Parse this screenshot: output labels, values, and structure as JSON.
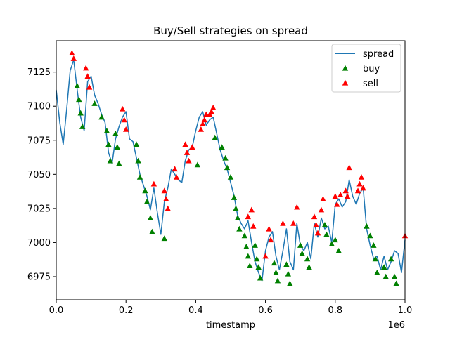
{
  "chart_data": {
    "type": "line",
    "title": "Buy/Sell strategies on spread",
    "xlabel": "timestamp",
    "ylabel": "",
    "x_offset_text": "1e6",
    "xlim": [
      0.0,
      1.0
    ],
    "ylim": [
      6958,
      7148
    ],
    "xticks": [
      0.0,
      0.2,
      0.4,
      0.6,
      0.8,
      1.0
    ],
    "xtick_labels": [
      "0.0",
      "0.2",
      "0.4",
      "0.6",
      "0.8",
      "1.0"
    ],
    "yticks": [
      6975,
      7000,
      7025,
      7050,
      7075,
      7100,
      7125
    ],
    "ytick_labels": [
      "6975",
      "7000",
      "7025",
      "7050",
      "7075",
      "7100",
      "7125"
    ],
    "grid": false,
    "legend_position": "top-right",
    "colors": {
      "spread": "#1f77b4",
      "buy": "#008000",
      "sell": "#ff0000"
    },
    "series": [
      {
        "name": "spread",
        "kind": "line",
        "x": [
          0.0,
          0.01,
          0.02,
          0.03,
          0.04,
          0.05,
          0.06,
          0.07,
          0.08,
          0.09,
          0.1,
          0.11,
          0.12,
          0.13,
          0.14,
          0.15,
          0.16,
          0.17,
          0.18,
          0.19,
          0.2,
          0.21,
          0.22,
          0.23,
          0.24,
          0.25,
          0.26,
          0.27,
          0.28,
          0.29,
          0.3,
          0.31,
          0.32,
          0.33,
          0.34,
          0.35,
          0.36,
          0.37,
          0.38,
          0.39,
          0.4,
          0.41,
          0.42,
          0.43,
          0.44,
          0.45,
          0.46,
          0.47,
          0.48,
          0.49,
          0.5,
          0.51,
          0.52,
          0.53,
          0.54,
          0.55,
          0.56,
          0.57,
          0.58,
          0.59,
          0.6,
          0.61,
          0.62,
          0.63,
          0.64,
          0.65,
          0.66,
          0.67,
          0.68,
          0.69,
          0.7,
          0.71,
          0.72,
          0.73,
          0.74,
          0.75,
          0.76,
          0.77,
          0.78,
          0.79,
          0.8,
          0.81,
          0.82,
          0.83,
          0.84,
          0.85,
          0.86,
          0.87,
          0.88,
          0.89,
          0.9,
          0.91,
          0.92,
          0.93,
          0.94,
          0.95,
          0.96,
          0.97,
          0.98,
          0.99,
          1.0
        ],
        "y": [
          7112,
          7088,
          7072,
          7098,
          7126,
          7134,
          7112,
          7092,
          7082,
          7118,
          7122,
          7108,
          7102,
          7094,
          7088,
          7066,
          7058,
          7076,
          7085,
          7092,
          7096,
          7076,
          7074,
          7062,
          7050,
          7042,
          7034,
          7024,
          7040,
          7022,
          7006,
          7030,
          7040,
          7054,
          7050,
          7046,
          7044,
          7060,
          7068,
          7070,
          7082,
          7092,
          7096,
          7086,
          7090,
          7092,
          7080,
          7068,
          7060,
          7054,
          7044,
          7034,
          7020,
          7014,
          7010,
          7016,
          7000,
          6986,
          6978,
          6972,
          6994,
          7004,
          7008,
          6990,
          6980,
          6994,
          7010,
          6986,
          6980,
          7014,
          6998,
          6994,
          7000,
          6988,
          7014,
          7004,
          7018,
          7010,
          7012,
          7000,
          7028,
          7032,
          7026,
          7030,
          7046,
          7034,
          7028,
          7036,
          7040,
          7010,
          6998,
          6988,
          6990,
          6980,
          6990,
          6980,
          6986,
          6994,
          6992,
          6978,
          7002
        ]
      },
      {
        "name": "buy",
        "kind": "marker",
        "x": [
          0.06,
          0.065,
          0.07,
          0.075,
          0.11,
          0.13,
          0.145,
          0.15,
          0.155,
          0.17,
          0.175,
          0.18,
          0.23,
          0.235,
          0.24,
          0.255,
          0.26,
          0.27,
          0.275,
          0.31,
          0.405,
          0.455,
          0.475,
          0.485,
          0.49,
          0.5,
          0.51,
          0.515,
          0.52,
          0.525,
          0.54,
          0.545,
          0.55,
          0.555,
          0.57,
          0.575,
          0.58,
          0.585,
          0.625,
          0.63,
          0.635,
          0.66,
          0.665,
          0.67,
          0.7,
          0.705,
          0.72,
          0.725,
          0.77,
          0.775,
          0.79,
          0.8,
          0.81,
          0.89,
          0.9,
          0.91,
          0.915,
          0.92,
          0.94,
          0.945,
          0.96,
          0.97,
          0.975
        ],
        "y": [
          7115,
          7105,
          7095,
          7085,
          7102,
          7092,
          7082,
          7072,
          7060,
          7080,
          7070,
          7058,
          7072,
          7060,
          7048,
          7038,
          7030,
          7018,
          7008,
          7003,
          7057,
          7077,
          7070,
          7062,
          7055,
          7048,
          7033,
          7025,
          7018,
          7010,
          7005,
          6997,
          6990,
          6983,
          6998,
          6988,
          6982,
          6974,
          6985,
          6978,
          6972,
          6984,
          6977,
          6970,
          6998,
          6992,
          6988,
          6982,
          7013,
          7006,
          6999,
          7002,
          6994,
          7012,
          7005,
          6998,
          6988,
          6978,
          6982,
          6975,
          6988,
          6975,
          6970
        ]
      },
      {
        "name": "sell",
        "kind": "marker",
        "x": [
          0.045,
          0.05,
          0.085,
          0.09,
          0.095,
          0.19,
          0.195,
          0.2,
          0.28,
          0.31,
          0.315,
          0.32,
          0.34,
          0.345,
          0.37,
          0.375,
          0.38,
          0.39,
          0.415,
          0.42,
          0.425,
          0.43,
          0.44,
          0.445,
          0.45,
          0.55,
          0.56,
          0.565,
          0.6,
          0.61,
          0.615,
          0.65,
          0.68,
          0.69,
          0.74,
          0.745,
          0.75,
          0.76,
          0.765,
          0.8,
          0.805,
          0.815,
          0.83,
          0.835,
          0.84,
          0.865,
          0.87,
          0.875,
          0.88,
          1.0
        ],
        "y": [
          7139,
          7135,
          7128,
          7122,
          7114,
          7098,
          7090,
          7083,
          7043,
          7038,
          7032,
          7025,
          7054,
          7048,
          7072,
          7066,
          7060,
          7070,
          7083,
          7087,
          7090,
          7094,
          7094,
          7096,
          7099,
          7019,
          7024,
          7012,
          6990,
          7010,
          7002,
          7014,
          7014,
          7026,
          7019,
          7013,
          7007,
          7024,
          7032,
          7034,
          7028,
          7035,
          7038,
          7034,
          7055,
          7038,
          7043,
          7048,
          7040,
          7005
        ]
      }
    ]
  }
}
